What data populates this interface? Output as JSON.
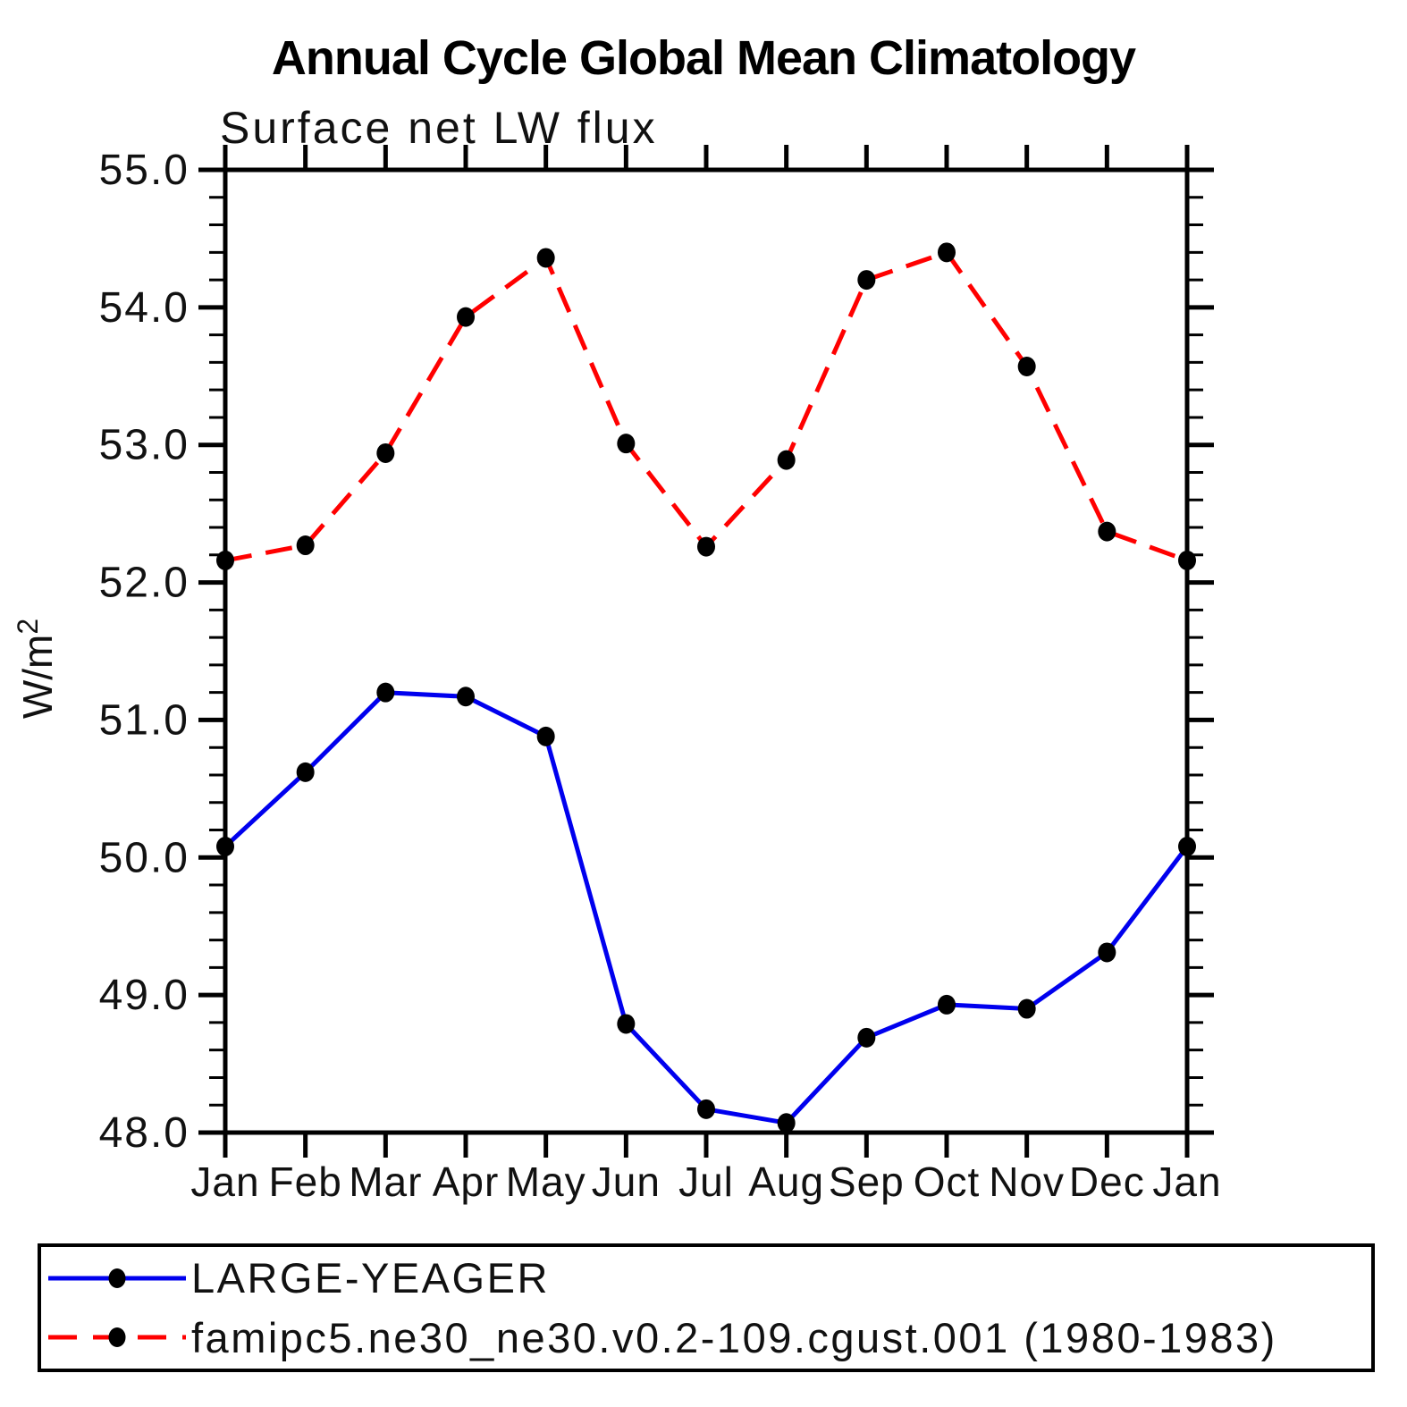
{
  "title": "Annual Cycle Global Mean Climatology",
  "subtitle": "Surface net LW flux",
  "chart_data": {
    "type": "line",
    "title": "Annual Cycle Global Mean Climatology",
    "subtitle": "Surface net LW flux",
    "ylabel": {
      "text": "W/m",
      "sup": "2"
    },
    "xlabel": "",
    "categories": [
      "Jan",
      "Feb",
      "Mar",
      "Apr",
      "May",
      "Jun",
      "Jul",
      "Aug",
      "Sep",
      "Oct",
      "Nov",
      "Dec",
      "Jan"
    ],
    "ylim": [
      48.0,
      55.0
    ],
    "ytick_labels": [
      "48.0",
      "49.0",
      "50.0",
      "51.0",
      "52.0",
      "53.0",
      "54.0",
      "55.0"
    ],
    "ytick_interval": 1.0,
    "yminor_interval": 0.2,
    "grid": false,
    "legend_position": "bottom",
    "series": [
      {
        "name": "LARGE-YEAGER",
        "color": "#0000ee",
        "style": "solid",
        "marker": "circle",
        "marker_color": "#000000",
        "values": [
          50.08,
          50.62,
          51.2,
          51.17,
          50.88,
          48.79,
          48.17,
          48.07,
          48.69,
          48.93,
          48.9,
          49.31,
          50.08
        ]
      },
      {
        "name": "famipc5.ne30_ne30.v0.2-109.cgust.001 (1980-1983)",
        "color": "#ff0000",
        "style": "dashed",
        "marker": "circle",
        "marker_color": "#000000",
        "values": [
          52.16,
          52.27,
          52.94,
          53.93,
          54.36,
          53.01,
          52.26,
          52.89,
          54.2,
          54.4,
          53.57,
          52.37,
          52.16
        ]
      }
    ]
  }
}
